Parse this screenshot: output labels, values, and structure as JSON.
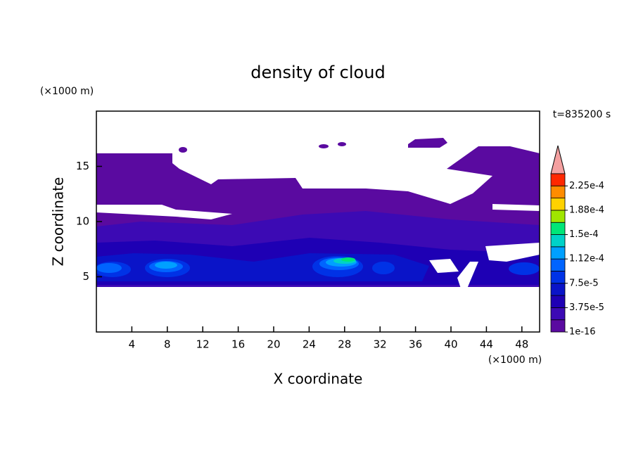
{
  "chart_data": {
    "type": "contour",
    "title": "density of cloud",
    "x_label": "X coordinate",
    "y_label": "Z coordinate",
    "x_unit": "(×1000 m)",
    "y_unit": "(×1000 m)",
    "time_label": "t=835200 s",
    "xlim": [
      0,
      50
    ],
    "xticks": [
      4,
      8,
      12,
      16,
      20,
      24,
      28,
      32,
      36,
      40,
      44,
      48
    ],
    "ylim": [
      0,
      20
    ],
    "yticks": [
      5,
      10,
      15
    ],
    "colorbar": {
      "lim": [
        0,
        0.00024375
      ],
      "colors": [
        "#5a0aa0",
        "#3c0ab4",
        "#1e00b4",
        "#0a14c8",
        "#0032e6",
        "#0064ff",
        "#00a0ff",
        "#00d2c8",
        "#00e678",
        "#a0e600",
        "#ffd200",
        "#ff8c00",
        "#ff2800"
      ],
      "extend_color": "#f4a0a0",
      "ticks": [
        {
          "value": 1e-16,
          "label": "1e-16"
        },
        {
          "value": 3.75e-05,
          "label": "3.75e-5"
        },
        {
          "value": 7.5e-05,
          "label": "7.5e-5"
        },
        {
          "value": 0.0001125,
          "label": "1.12e-4"
        },
        {
          "value": 0.00015,
          "label": "1.5e-4"
        },
        {
          "value": 0.0001875,
          "label": "1.88e-4"
        },
        {
          "value": 0.000225,
          "label": "2.25e-4"
        }
      ]
    }
  }
}
